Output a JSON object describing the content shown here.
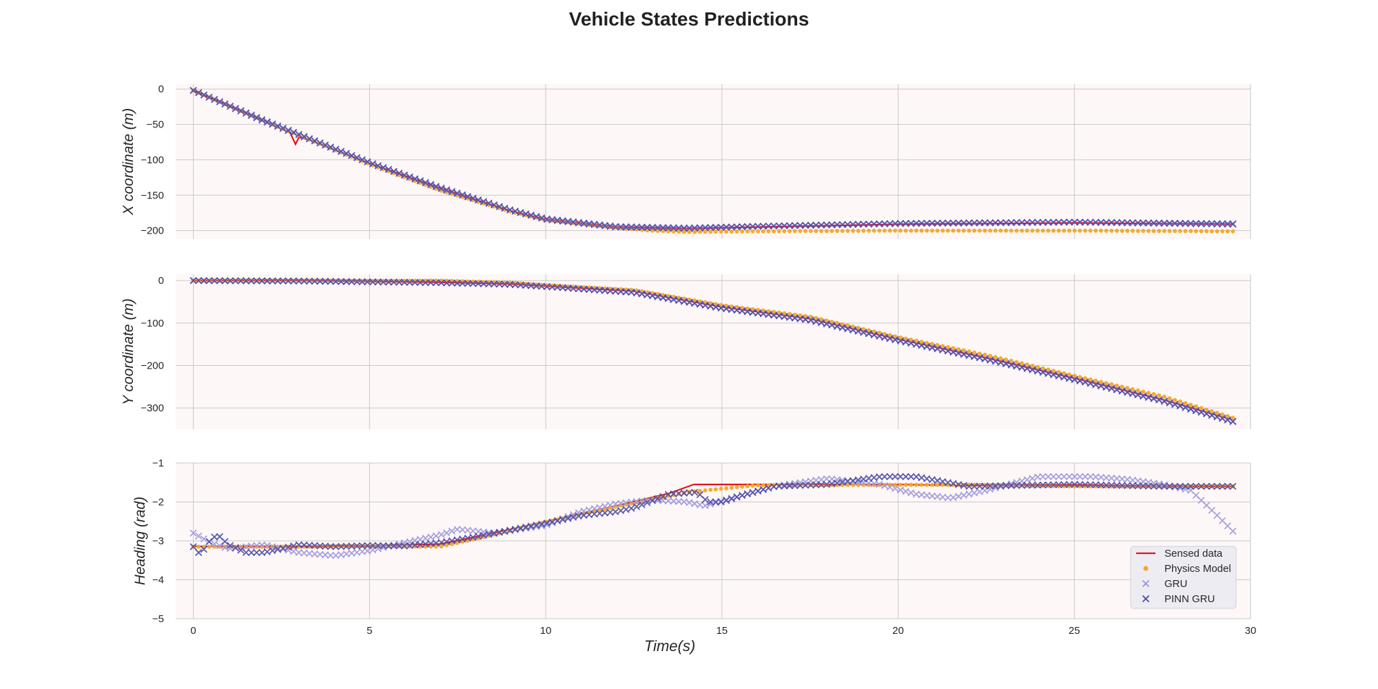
{
  "chart_data": {
    "type": "line",
    "title": "Vehicle States Predictions",
    "xlabel": "Time(s)",
    "xlim": [
      -0.5,
      30
    ],
    "xticks": [
      0,
      5,
      10,
      15,
      20,
      25,
      30
    ],
    "grid": true,
    "legend_placement": "lower-right",
    "legend": [
      "Sensed data",
      "Physics Model",
      "GRU",
      "PINN GRU"
    ],
    "colors": {
      "sensed": "#e8101c",
      "physics": "#f5a623",
      "gru": "#9a93dc",
      "pinn": "#4a4aa8",
      "plot_bg": "#fdf8f7",
      "grid": "#c8c8c8"
    },
    "subplots": [
      {
        "ylabel": "X coordinate (m)",
        "ylim": [
          -212,
          7
        ],
        "yticks": [
          0,
          -50,
          -100,
          -150,
          -200
        ],
        "ytick_labels": [
          "0",
          "−50",
          "−100",
          "−150",
          "−200"
        ],
        "series": [
          {
            "name": "Sensed data",
            "style": "line",
            "x": [
              0,
              2,
              2.75,
              2.9,
              3,
              3.3,
              5,
              7,
              9,
              10,
              12,
              14,
              16,
              20,
              25,
              29.5
            ],
            "y": [
              -2,
              -45,
              -62,
              -78,
              -68,
              -72,
              -105,
              -140,
              -172,
              -184,
              -195,
              -197,
              -195,
              -191,
              -189,
              -191
            ]
          },
          {
            "name": "Physics Model",
            "style": "dot",
            "x": [
              0,
              2,
              5,
              7,
              9,
              10,
              12,
              13,
              14,
              16,
              20,
              25,
              29.5
            ],
            "y": [
              -2,
              -45,
              -106,
              -143,
              -173,
              -185,
              -196,
              -200,
              -202,
              -201,
              -200,
              -200,
              -201
            ]
          },
          {
            "name": "GRU",
            "style": "x-light",
            "x": [
              0,
              2,
              5,
              7,
              9,
              10,
              12,
              14,
              16,
              20,
              25,
              29.5
            ],
            "y": [
              -2,
              -44,
              -104,
              -139,
              -171,
              -183,
              -194,
              -196,
              -194,
              -190,
              -188,
              -190
            ]
          },
          {
            "name": "PINN GRU",
            "style": "x-dark",
            "x": [
              0,
              2,
              5,
              7,
              9,
              10,
              12,
              14,
              16,
              20,
              25,
              29.5
            ],
            "y": [
              -2,
              -45,
              -104,
              -140,
              -171,
              -184,
              -195,
              -197,
              -194,
              -190,
              -188,
              -191
            ]
          }
        ]
      },
      {
        "ylabel": "Y coordinate (m)",
        "ylim": [
          -350,
          15
        ],
        "yticks": [
          0,
          -100,
          -200,
          -300
        ],
        "ytick_labels": [
          "0",
          "−100",
          "−200",
          "−300"
        ],
        "series": [
          {
            "name": "Sensed data",
            "style": "line",
            "x": [
              0,
              3,
              5,
              7,
              9,
              10,
              12.5,
              15,
              17.5,
              20,
              22.5,
              25,
              27.5,
              29.5
            ],
            "y": [
              0,
              0,
              -2,
              -4,
              -8,
              -13,
              -25,
              -62,
              -90,
              -138,
              -182,
              -230,
              -280,
              -328
            ]
          },
          {
            "name": "Physics Model",
            "style": "dot",
            "x": [
              0,
              3,
              5,
              7,
              9,
              10,
              12.5,
              15,
              17.5,
              20,
              22.5,
              25,
              27.5,
              29.5
            ],
            "y": [
              0,
              0,
              -1,
              0,
              -5,
              -11,
              -22,
              -58,
              -85,
              -133,
              -175,
              -224,
              -272,
              -323
            ]
          },
          {
            "name": "GRU",
            "style": "x-light",
            "x": [
              0,
              3,
              5,
              7,
              9,
              10,
              12.5,
              15,
              17.5,
              20,
              22.5,
              25,
              27.5,
              29.5
            ],
            "y": [
              0,
              -1,
              -3,
              -5,
              -9,
              -14,
              -27,
              -64,
              -92,
              -140,
              -184,
              -232,
              -282,
              -331
            ]
          },
          {
            "name": "PINN GRU",
            "style": "x-dark",
            "x": [
              0,
              3,
              5,
              7,
              9,
              10,
              12.5,
              15,
              17.5,
              20,
              22.5,
              25,
              27.5,
              29.5
            ],
            "y": [
              0,
              -1,
              -3,
              -5,
              -9,
              -14,
              -28,
              -65,
              -93,
              -141,
              -185,
              -233,
              -283,
              -332
            ]
          }
        ]
      },
      {
        "ylabel": "Heading (rad)",
        "ylim": [
          -5,
          -1
        ],
        "yticks": [
          -1,
          -2,
          -3,
          -4,
          -5
        ],
        "ytick_labels": [
          "−1",
          "−2",
          "−3",
          "−4",
          "−5"
        ],
        "series": [
          {
            "name": "Sensed data",
            "style": "line",
            "x": [
              0,
              3,
              5,
              7,
              8,
              10,
              12,
              13.5,
              14.2,
              16,
              20,
              22,
              25,
              27.5,
              29.5
            ],
            "y": [
              -3.14,
              -3.14,
              -3.13,
              -3.08,
              -2.9,
              -2.5,
              -2.1,
              -1.78,
              -1.55,
              -1.55,
              -1.55,
              -1.58,
              -1.56,
              -1.6,
              -1.6
            ]
          },
          {
            "name": "Physics Model",
            "style": "dot",
            "x": [
              0,
              3,
              5,
              7,
              8,
              10,
              12,
              14,
              16,
              20,
              22,
              25,
              27.5,
              29.5
            ],
            "y": [
              -3.15,
              -3.15,
              -3.13,
              -3.15,
              -2.95,
              -2.52,
              -2.12,
              -1.75,
              -1.57,
              -1.56,
              -1.56,
              -1.6,
              -1.6,
              -1.6
            ]
          },
          {
            "name": "GRU",
            "style": "x-light",
            "x": [
              0,
              0.5,
              1,
              1.5,
              2,
              3,
              4,
              5,
              6,
              7,
              7.5,
              8.5,
              10,
              11,
              12,
              13,
              14,
              14.5,
              15.5,
              16.5,
              18,
              19.5,
              20.5,
              21.5,
              22.5,
              24,
              25.5,
              26.5,
              27.5,
              28.3,
              29,
              29.5
            ],
            "y": [
              -2.8,
              -3.05,
              -3.2,
              -3.15,
              -3.1,
              -3.3,
              -3.38,
              -3.25,
              -3.05,
              -2.85,
              -2.7,
              -2.8,
              -2.6,
              -2.25,
              -2.05,
              -1.95,
              -2.0,
              -2.1,
              -1.85,
              -1.6,
              -1.4,
              -1.55,
              -1.8,
              -1.9,
              -1.7,
              -1.35,
              -1.35,
              -1.42,
              -1.55,
              -1.7,
              -2.3,
              -2.75
            ]
          },
          {
            "name": "PINN GRU",
            "style": "x-dark",
            "x": [
              0,
              0.2,
              0.5,
              0.7,
              1,
              1.5,
              2,
              2.5,
              3,
              4,
              5,
              6,
              7,
              8,
              10,
              11,
              12,
              12.5,
              13.5,
              14.3,
              14.6,
              15,
              15.5,
              16.5,
              18,
              19.5,
              20.5,
              22,
              25,
              27.5,
              28.3,
              29,
              29.5
            ],
            "y": [
              -3.15,
              -3.35,
              -2.95,
              -2.85,
              -3.1,
              -3.3,
              -3.3,
              -3.2,
              -3.1,
              -3.15,
              -3.12,
              -3.13,
              -3.05,
              -2.9,
              -2.55,
              -2.35,
              -2.25,
              -2.15,
              -1.8,
              -1.75,
              -2.0,
              -2.0,
              -1.85,
              -1.6,
              -1.55,
              -1.35,
              -1.35,
              -1.6,
              -1.55,
              -1.6,
              -1.6,
              -1.6,
              -1.6
            ]
          }
        ]
      }
    ]
  }
}
